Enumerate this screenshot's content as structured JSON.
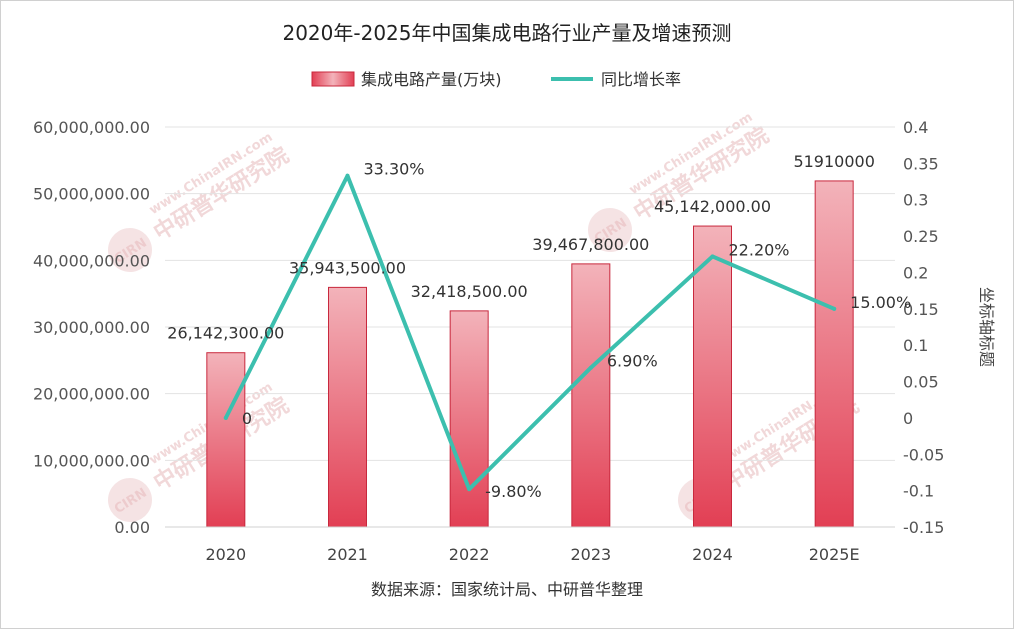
{
  "chart_data": {
    "type": "bar",
    "title": "2020年-2025年中国集成电路行业产量及增速预测",
    "categories": [
      "2020",
      "2021",
      "2022",
      "2023",
      "2024",
      "2025E"
    ],
    "series": [
      {
        "name": "集成电路产量(万块)",
        "type": "bar",
        "axis": "left",
        "values": [
          26142300,
          35943500,
          32418500,
          39467800,
          45142000,
          51910000
        ],
        "labels": [
          "26,142,300.00",
          "35,943,500.00",
          "32,418,500.00",
          "39,467,800.00",
          "45,142,000.00",
          "51910000"
        ]
      },
      {
        "name": "同比增长率",
        "type": "line",
        "axis": "right",
        "values": [
          0,
          0.333,
          -0.098,
          0.069,
          0.222,
          0.15
        ],
        "labels": [
          "0",
          "33.30%",
          "-9.80%",
          "6.90%",
          "22.20%",
          "15.00%"
        ]
      }
    ],
    "y_left": {
      "ylim": [
        0,
        60000000
      ],
      "tick_labels": [
        "0.00",
        "10,000,000.00",
        "20,000,000.00",
        "30,000,000.00",
        "40,000,000.00",
        "50,000,000.00",
        "60,000,000.00"
      ]
    },
    "y_right": {
      "ylim": [
        -0.15,
        0.4
      ],
      "label": "坐标轴标题",
      "tick_labels": [
        "-0.15",
        "-0.1",
        "-0.05",
        "0",
        "0.05",
        "0.1",
        "0.15",
        "0.2",
        "0.25",
        "0.3",
        "0.35",
        "0.4"
      ]
    },
    "grid": true,
    "legend_position": "top-center",
    "colors": {
      "bar_top": "#f3b3ba",
      "bar_bottom": "#e23f54",
      "bar_border": "#c8283d",
      "line": "#3cbfae",
      "grid": "#e3e3e3"
    },
    "source": "数据来源：国家统计局、中研普华整理"
  },
  "watermark": {
    "brand": "中研普华研究院",
    "site": "www.ChinaIRN.com",
    "logo": "CIRN"
  }
}
